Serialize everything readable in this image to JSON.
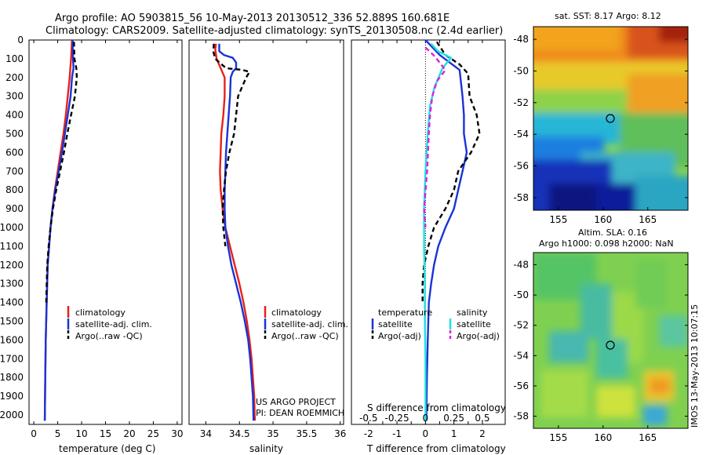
{
  "header": {
    "line1": "Argo profile: AO 5903815_56 10-May-2013 20130512_336 52.889S 160.681E",
    "line2": "Climatology: CARS2009. Satellite-adjusted climatology: synTS_20130508.nc (2.4d earlier)"
  },
  "colors": {
    "climatology": "#e8201b",
    "satellite": "#1a33d6",
    "argo": "#000000",
    "sat_salinity": "#1fe0e0",
    "argo_salinity": "#e020e0"
  },
  "depth_ticks": [
    0,
    100,
    200,
    300,
    400,
    500,
    600,
    700,
    800,
    900,
    1000,
    1100,
    1200,
    1300,
    1400,
    1500,
    1600,
    1700,
    1800,
    1900,
    2000
  ],
  "depth_range": [
    0,
    2050
  ],
  "chart_data": [
    {
      "type": "line",
      "xlabel": "temperature (deg C)",
      "xlim": [
        -1,
        31
      ],
      "xticks": [
        0,
        5,
        10,
        15,
        20,
        25,
        30
      ],
      "ylim": [
        2050,
        0
      ],
      "legend": [
        "climatology",
        "satellite-adj. clim.",
        "Argo(..raw -QC)"
      ],
      "series": [
        {
          "name": "climatology",
          "color": "#e8201b",
          "dash": "",
          "points": [
            [
              8.0,
              0
            ],
            [
              7.8,
              100
            ],
            [
              7.5,
              200
            ],
            [
              7.1,
              300
            ],
            [
              6.7,
              400
            ],
            [
              6.2,
              500
            ],
            [
              5.6,
              600
            ],
            [
              5.0,
              700
            ],
            [
              4.4,
              800
            ],
            [
              3.9,
              900
            ],
            [
              3.5,
              1000
            ],
            [
              3.2,
              1100
            ],
            [
              2.9,
              1200
            ],
            [
              2.7,
              1400
            ],
            [
              2.5,
              1600
            ],
            [
              2.4,
              1800
            ],
            [
              2.3,
              2030
            ]
          ]
        },
        {
          "name": "satellite-adj. clim.",
          "color": "#1a33d6",
          "dash": "",
          "points": [
            [
              8.1,
              0
            ],
            [
              8.2,
              100
            ],
            [
              8.3,
              150
            ],
            [
              8.0,
              200
            ],
            [
              7.7,
              300
            ],
            [
              7.1,
              400
            ],
            [
              6.5,
              500
            ],
            [
              5.9,
              600
            ],
            [
              5.2,
              700
            ],
            [
              4.5,
              800
            ],
            [
              3.9,
              900
            ],
            [
              3.5,
              1000
            ],
            [
              3.2,
              1100
            ],
            [
              2.9,
              1200
            ],
            [
              2.7,
              1400
            ],
            [
              2.5,
              1600
            ],
            [
              2.4,
              1800
            ],
            [
              2.3,
              2030
            ]
          ]
        },
        {
          "name": "Argo(..raw -QC)",
          "color": "#000000",
          "dash": "6,4",
          "points": [
            [
              8.4,
              10
            ],
            [
              8.5,
              100
            ],
            [
              8.9,
              150
            ],
            [
              9.0,
              200
            ],
            [
              8.6,
              300
            ],
            [
              7.8,
              400
            ],
            [
              7.0,
              500
            ],
            [
              6.3,
              600
            ],
            [
              5.5,
              700
            ],
            [
              4.7,
              800
            ],
            [
              4.0,
              900
            ],
            [
              3.5,
              1000
            ],
            [
              3.1,
              1100
            ],
            [
              2.8,
              1200
            ],
            [
              2.6,
              1400
            ]
          ]
        }
      ]
    },
    {
      "type": "line",
      "xlabel": "salinity",
      "xlim": [
        33.75,
        36.05
      ],
      "xticks": [
        34,
        34.5,
        35,
        35.5,
        36
      ],
      "ylim": [
        2050,
        0
      ],
      "legend": [
        "climatology",
        "satellite-adj. clim.",
        "Argo(..raw -QC)"
      ],
      "annotations": [
        "US ARGO PROJECT",
        "PI: DEAN ROEMMICH"
      ],
      "series": [
        {
          "name": "climatology",
          "color": "#e8201b",
          "dash": "",
          "points": [
            [
              34.15,
              20
            ],
            [
              34.14,
              50
            ],
            [
              34.16,
              100
            ],
            [
              34.22,
              150
            ],
            [
              34.28,
              200
            ],
            [
              34.28,
              300
            ],
            [
              34.26,
              400
            ],
            [
              34.23,
              500
            ],
            [
              34.22,
              600
            ],
            [
              34.21,
              700
            ],
            [
              34.22,
              800
            ],
            [
              34.25,
              900
            ],
            [
              34.29,
              1000
            ],
            [
              34.36,
              1100
            ],
            [
              34.43,
              1200
            ],
            [
              34.5,
              1300
            ],
            [
              34.56,
              1400
            ],
            [
              34.61,
              1500
            ],
            [
              34.65,
              1600
            ],
            [
              34.68,
              1700
            ],
            [
              34.7,
              1800
            ],
            [
              34.72,
              1900
            ],
            [
              34.73,
              2030
            ]
          ]
        },
        {
          "name": "satellite-adj. clim.",
          "color": "#1a33d6",
          "dash": "",
          "points": [
            [
              34.2,
              20
            ],
            [
              34.2,
              60
            ],
            [
              34.27,
              80
            ],
            [
              34.4,
              95
            ],
            [
              34.45,
              120
            ],
            [
              34.45,
              150
            ],
            [
              34.4,
              170
            ],
            [
              34.37,
              200
            ],
            [
              34.36,
              300
            ],
            [
              34.34,
              400
            ],
            [
              34.32,
              500
            ],
            [
              34.3,
              600
            ],
            [
              34.29,
              700
            ],
            [
              34.28,
              800
            ],
            [
              34.28,
              900
            ],
            [
              34.29,
              1000
            ],
            [
              34.33,
              1100
            ],
            [
              34.38,
              1200
            ],
            [
              34.45,
              1300
            ],
            [
              34.52,
              1400
            ],
            [
              34.58,
              1500
            ],
            [
              34.63,
              1600
            ],
            [
              34.66,
              1700
            ],
            [
              34.68,
              1800
            ],
            [
              34.7,
              1900
            ],
            [
              34.71,
              2030
            ]
          ]
        },
        {
          "name": "Argo(..raw -QC)",
          "color": "#000000",
          "dash": "6,4",
          "points": [
            [
              34.12,
              20
            ],
            [
              34.11,
              60
            ],
            [
              34.14,
              100
            ],
            [
              34.3,
              150
            ],
            [
              34.55,
              160
            ],
            [
              34.65,
              170
            ],
            [
              34.6,
              200
            ],
            [
              34.48,
              300
            ],
            [
              34.45,
              400
            ],
            [
              34.42,
              500
            ],
            [
              34.35,
              600
            ],
            [
              34.3,
              700
            ],
            [
              34.27,
              800
            ],
            [
              34.25,
              900
            ],
            [
              34.26,
              1000
            ],
            [
              34.29,
              1100
            ]
          ]
        }
      ]
    },
    {
      "type": "line",
      "xlabel": "T difference from climatology",
      "x2label": "S difference from climatology",
      "xlim": [
        -2.6,
        2.8
      ],
      "xticks": [
        -2,
        -1.5,
        -1,
        -0.5,
        0,
        0.5,
        1,
        1.5,
        2
      ],
      "xticklabels": [
        "-2",
        "",
        "-1",
        "",
        "0",
        "",
        "1",
        "",
        "2"
      ],
      "s_xticks": [
        -0.5,
        -0.25,
        0,
        0.25,
        0.5
      ],
      "s_xticklabels": [
        "-0.5",
        "-0.25",
        "0",
        "0.25",
        "0.5"
      ],
      "s_scale": 4,
      "ylim": [
        2050,
        0
      ],
      "legend_groups": [
        {
          "title": "temperature",
          "entries": [
            "satellite",
            "Argo(-adj)"
          ]
        },
        {
          "title": "salinity",
          "entries": [
            "satellite",
            "Argo(-adj)"
          ]
        }
      ],
      "series": [
        {
          "name": "satellite",
          "group": "temperature",
          "color": "#1a33d6",
          "dash": "",
          "points": [
            [
              0,
              0
            ],
            [
              0.5,
              80
            ],
            [
              1.2,
              160
            ],
            [
              1.3,
              300
            ],
            [
              1.35,
              400
            ],
            [
              1.35,
              500
            ],
            [
              1.45,
              600
            ],
            [
              1.3,
              700
            ],
            [
              1.15,
              800
            ],
            [
              1.0,
              900
            ],
            [
              0.7,
              1000
            ],
            [
              0.45,
              1100
            ],
            [
              0.3,
              1200
            ],
            [
              0.2,
              1300
            ],
            [
              0.12,
              1400
            ],
            [
              0.08,
              1600
            ],
            [
              0.05,
              1800
            ],
            [
              0.03,
              2030
            ]
          ]
        },
        {
          "name": "Argo(-adj)",
          "group": "temperature",
          "color": "#000000",
          "dash": "6,4",
          "points": [
            [
              0.4,
              10
            ],
            [
              0.7,
              80
            ],
            [
              1.2,
              130
            ],
            [
              1.5,
              180
            ],
            [
              1.55,
              300
            ],
            [
              1.8,
              400
            ],
            [
              1.9,
              500
            ],
            [
              1.6,
              600
            ],
            [
              1.15,
              700
            ],
            [
              1.0,
              800
            ],
            [
              0.7,
              900
            ],
            [
              0.3,
              1000
            ],
            [
              0.1,
              1100
            ],
            [
              -0.05,
              1200
            ],
            [
              -0.1,
              1300
            ],
            [
              -0.1,
              1400
            ]
          ]
        },
        {
          "name": "satellite",
          "group": "salinity",
          "color": "#1fe0e0",
          "dash": "",
          "points": [
            [
              0.05,
              20
            ],
            [
              0.11,
              60
            ],
            [
              0.225,
              95
            ],
            [
              0.15,
              150
            ],
            [
              0.08,
              250
            ],
            [
              0.04,
              350
            ],
            [
              0.02,
              500
            ],
            [
              0.0,
              700
            ],
            [
              -0.0125,
              900
            ],
            [
              -0.0125,
              1100
            ],
            [
              -0.005,
              1300
            ],
            [
              -0.005,
              1500
            ],
            [
              0.0,
              1700
            ],
            [
              0.0,
              2030
            ]
          ]
        },
        {
          "name": "Argo(-adj)",
          "group": "salinity",
          "color": "#e020e0",
          "dash": "6,4",
          "points": [
            [
              0.0,
              40
            ],
            [
              0.07,
              80
            ],
            [
              0.125,
              120
            ],
            [
              0.175,
              160
            ],
            [
              0.1,
              220
            ],
            [
              0.06,
              300
            ],
            [
              0.04,
              400
            ],
            [
              0.03,
              500
            ],
            [
              0.015,
              700
            ],
            [
              -0.0125,
              900
            ],
            [
              0.0,
              1000
            ]
          ]
        }
      ]
    }
  ],
  "maps": {
    "top": {
      "title": "sat. SST: 8.17  Argo: 8.12",
      "lat_ticks": [
        "-48",
        "-50",
        "-52",
        "-54",
        "-56",
        "-58"
      ],
      "lon_ticks": [
        "155",
        "160",
        "165"
      ],
      "marker": {
        "lon": 160.681,
        "lat": -52.889
      }
    },
    "bottom": {
      "title1": "Altim. SLA: 0.16",
      "title2": "Argo h1000: 0.098 h2000: NaN",
      "lat_ticks": [
        "-48",
        "-50",
        "-52",
        "-54",
        "-56",
        "-58"
      ],
      "lon_ticks": [
        "155",
        "160",
        "165"
      ],
      "marker": {
        "lon": 160.681,
        "lat": -52.889
      },
      "side_label": "IMOS 13-May-2013 10:07:15"
    }
  }
}
